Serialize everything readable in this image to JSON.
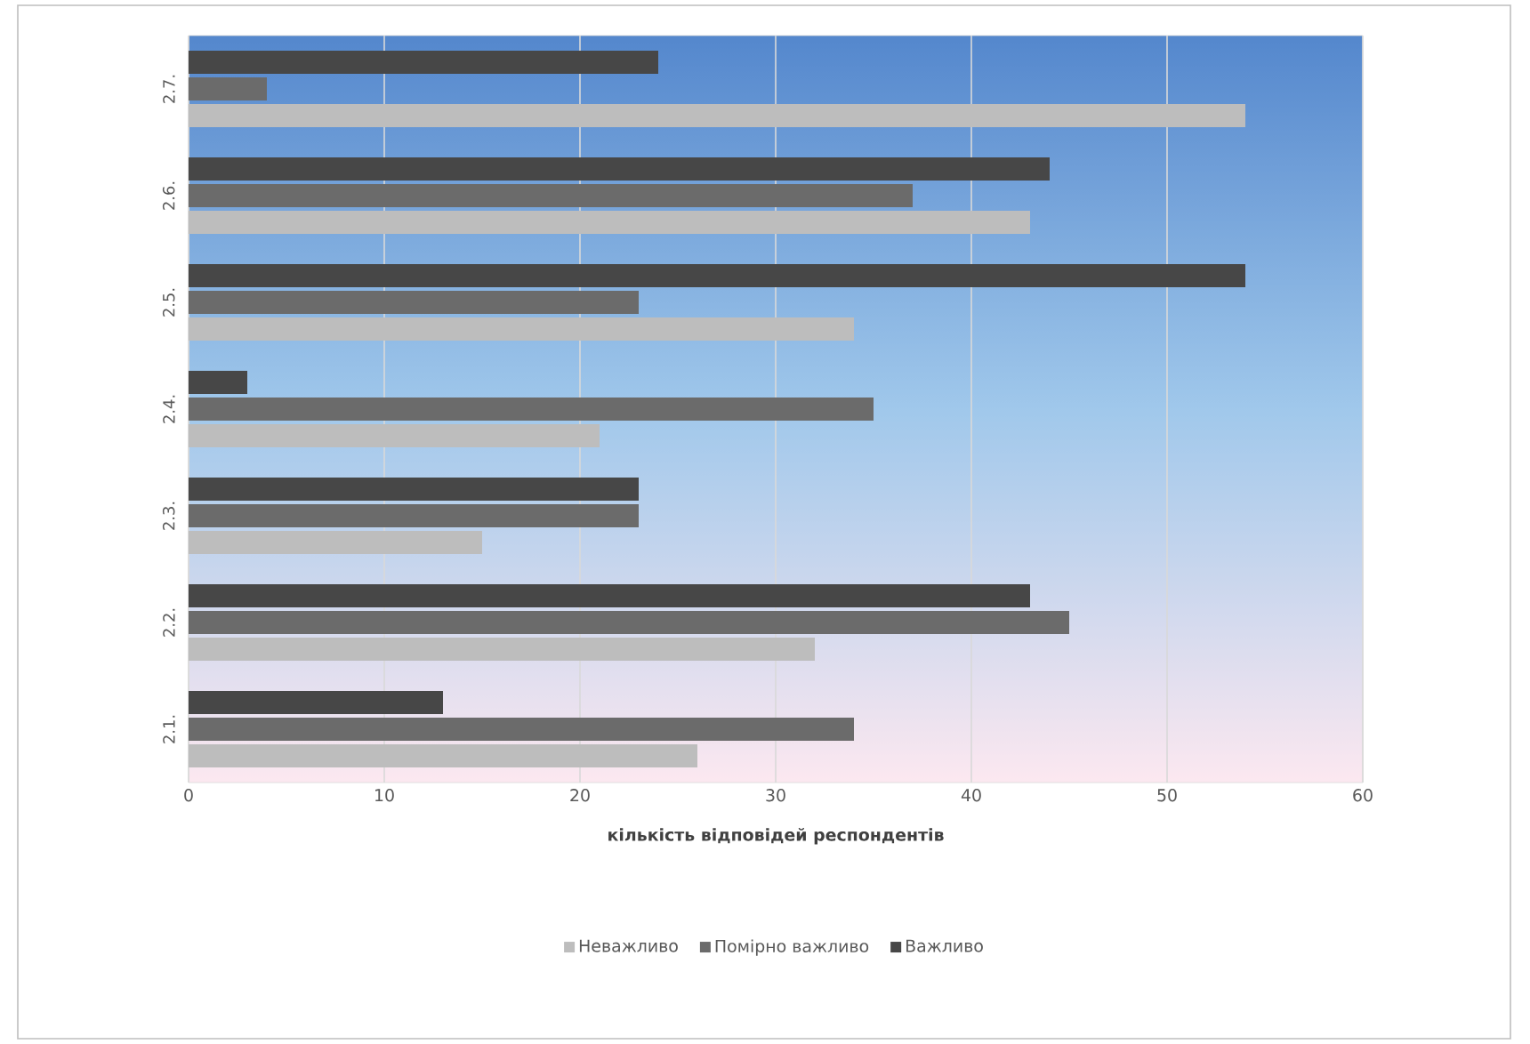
{
  "chart_data": {
    "type": "bar",
    "orientation": "horizontal",
    "xlabel": "кількість відповідей респондентів",
    "categories": [
      "2.7.",
      "2.6.",
      "2.5.",
      "2.4.",
      "2.3.",
      "2.2.",
      "2.1."
    ],
    "series": [
      {
        "name": "Неважливо",
        "color": "#bdbdbd",
        "values": [
          54,
          43,
          34,
          21,
          15,
          32,
          26
        ]
      },
      {
        "name": "Помірно важливо",
        "color": "#6b6b6b",
        "values": [
          4,
          37,
          23,
          35,
          23,
          45,
          34
        ]
      },
      {
        "name": "Важливо",
        "color": "#474747",
        "values": [
          24,
          44,
          54,
          3,
          23,
          43,
          13
        ]
      }
    ],
    "xlim": [
      0,
      60
    ],
    "xticks": [
      0,
      10,
      20,
      30,
      40,
      50,
      60
    ],
    "grid": "x",
    "legend": "bottom"
  }
}
